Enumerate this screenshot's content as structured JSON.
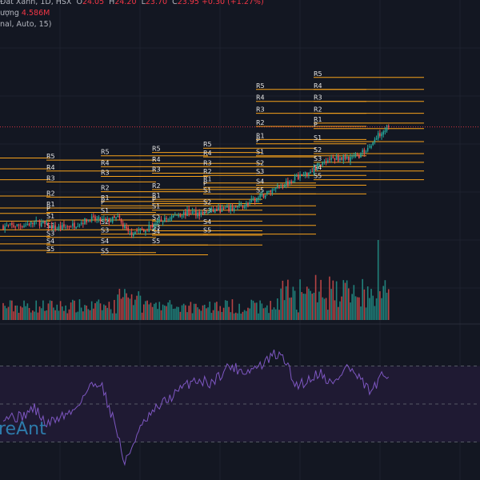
{
  "legend": {
    "symbol": "Đất Xanh, 1D, HSX",
    "o_label": "O",
    "o_value": "24.05",
    "h_label": "H",
    "h_value": "24.20",
    "l_label": "L",
    "l_value": "23.70",
    "c_label": "C",
    "c_value": "23.95",
    "change": "+0.30 (+1.27%)",
    "volume_label": "ượng",
    "volume_value": "4.586M",
    "pivot_settings": "nal, Auto, 15)"
  },
  "watermark": "reAnt",
  "colors": {
    "background": "#131722",
    "up": "#26a69a",
    "down": "#ef5350",
    "pivot": "#f7a21b",
    "pivot_text": "#e8e8e8",
    "rsi_line": "#7e57c2",
    "rsi_band": "#1f1a33",
    "last_price_line": "#f23645"
  },
  "chart_data": [
    {
      "type": "candlestick",
      "symbol": "Đất Xanh, 1D, HSX",
      "last": {
        "open": 24.05,
        "high": 24.2,
        "low": 23.7,
        "close": 23.95,
        "change": 0.3,
        "change_pct": 1.27
      },
      "price_range": [
        10.5,
        28.5
      ],
      "path_anchors": [
        [
          0,
          14.8
        ],
        [
          10,
          14.9
        ],
        [
          20,
          15.2
        ],
        [
          30,
          14.6
        ],
        [
          40,
          14.9
        ],
        [
          50,
          15.5
        ],
        [
          60,
          15.3
        ],
        [
          66,
          15.6
        ],
        [
          72,
          14.2
        ],
        [
          80,
          14.5
        ],
        [
          90,
          15.2
        ],
        [
          100,
          15.9
        ],
        [
          108,
          16.1
        ],
        [
          115,
          16.0
        ],
        [
          122,
          16.3
        ],
        [
          130,
          16.4
        ],
        [
          140,
          16.8
        ],
        [
          148,
          17.5
        ],
        [
          152,
          17.9
        ],
        [
          160,
          18.6
        ],
        [
          170,
          19.4
        ],
        [
          175,
          19.7
        ],
        [
          182,
          20.5
        ],
        [
          188,
          21.0
        ],
        [
          196,
          21.1
        ],
        [
          205,
          21.3
        ],
        [
          212,
          22.3
        ],
        [
          218,
          23.6
        ],
        [
          222,
          23.95
        ]
      ],
      "pivot_sets": [
        {
          "levels": [
            {
              "name": "R5",
              "value": 21.1
            },
            {
              "name": "R4",
              "value": 20.1
            },
            {
              "name": "R3",
              "value": 19.1
            },
            {
              "name": "R2",
              "value": 17.6
            },
            {
              "name": "R1",
              "value": 16.5
            },
            {
              "name": "P",
              "value": 16.0
            },
            {
              "name": "S1",
              "value": 15.3
            },
            {
              "name": "S2",
              "value": 14.5
            },
            {
              "name": "S3",
              "value": 13.9
            },
            {
              "name": "S4",
              "value": 13.2
            },
            {
              "name": "S5",
              "value": 12.6
            }
          ]
        },
        {
          "levels": [
            {
              "name": "R5",
              "value": 20.9
            },
            {
              "name": "R4",
              "value": 19.9
            },
            {
              "name": "R3",
              "value": 18.9
            },
            {
              "name": "R2",
              "value": 17.5
            },
            {
              "name": "R1",
              "value": 16.5
            },
            {
              "name": "P",
              "value": 16.1
            },
            {
              "name": "S1",
              "value": 15.4
            },
            {
              "name": "S2",
              "value": 14.5
            },
            {
              "name": "S3",
              "value": 13.8
            },
            {
              "name": "S4",
              "value": 13.1
            },
            {
              "name": "S5",
              "value": 12.4
            }
          ]
        },
        {
          "levels": [
            {
              "name": "R5",
              "value": 21.3
            },
            {
              "name": "R4",
              "value": 20.3
            },
            {
              "name": "R3",
              "value": 19.4
            },
            {
              "name": "R2",
              "value": 18.0
            },
            {
              "name": "R1",
              "value": 17.1
            },
            {
              "name": "P",
              "value": 16.7
            },
            {
              "name": "S1",
              "value": 15.9
            },
            {
              "name": "S2",
              "value": 14.9
            },
            {
              "name": "S3",
              "value": 14.1
            },
            {
              "name": "S4",
              "value": 13.1
            },
            {
              "name": "S5",
              "value": 12.2
            }
          ]
        },
        {
          "levels": [
            {
              "name": "R5",
              "value": 21.6
            },
            {
              "name": "R4",
              "value": 20.6
            },
            {
              "name": "R3",
              "value": 19.7
            },
            {
              "name": "R2",
              "value": 18.2
            },
            {
              "name": "R1",
              "value": 17.3
            },
            {
              "name": "P",
              "value": 16.9
            },
            {
              "name": "S1",
              "value": 16.3
            },
            {
              "name": "S2",
              "value": 15.3
            },
            {
              "name": "S3",
              "value": 14.4
            },
            {
              "name": "S4",
              "value": 14.0
            },
            {
              "name": "S5",
              "value": 13.1
            }
          ]
        },
        {
          "levels": [
            {
              "name": "R5",
              "value": 22.0
            },
            {
              "name": "R4",
              "value": 21.2
            },
            {
              "name": "R3",
              "value": 20.3
            },
            {
              "name": "R2",
              "value": 19.5
            },
            {
              "name": "R1",
              "value": 18.8
            },
            {
              "name": "P",
              "value": 18.4
            },
            {
              "name": "S1",
              "value": 17.8
            },
            {
              "name": "S2",
              "value": 16.7
            },
            {
              "name": "S3",
              "value": 15.9
            },
            {
              "name": "S4",
              "value": 14.9
            },
            {
              "name": "S5",
              "value": 14.1
            }
          ]
        },
        {
          "levels": [
            {
              "name": "R5",
              "value": 27.4
            },
            {
              "name": "R4",
              "value": 26.3
            },
            {
              "name": "R3",
              "value": 25.2
            },
            {
              "name": "R2",
              "value": 24.0
            },
            {
              "name": "R1",
              "value": 22.8
            },
            {
              "name": "P",
              "value": 22.4
            },
            {
              "name": "S1",
              "value": 21.3
            },
            {
              "name": "S2",
              "value": 20.3
            },
            {
              "name": "S3",
              "value": 19.5
            },
            {
              "name": "S4",
              "value": 18.6
            },
            {
              "name": "S5",
              "value": 17.8
            }
          ]
        },
        {
          "levels": [
            {
              "name": "R5",
              "value": 28.5
            },
            {
              "name": "R4",
              "value": 27.4
            },
            {
              "name": "R3",
              "value": 26.3
            },
            {
              "name": "R2",
              "value": 25.2
            },
            {
              "name": "R1",
              "value": 24.3
            },
            {
              "name": "P",
              "value": 23.8
            },
            {
              "name": "S1",
              "value": 22.6
            },
            {
              "name": "S2",
              "value": 21.5
            },
            {
              "name": "S3",
              "value": 20.7
            },
            {
              "name": "S4",
              "value": 19.9
            },
            {
              "name": "S5",
              "value": 19.1
            }
          ]
        }
      ]
    },
    {
      "type": "bar",
      "name": "volume",
      "latest_value": "4.586M"
    },
    {
      "type": "line",
      "name": "rsi",
      "band": [
        30,
        70
      ],
      "ylim": [
        10,
        90
      ],
      "path_anchors": [
        [
          0,
          44
        ],
        [
          10,
          43
        ],
        [
          18,
          48
        ],
        [
          25,
          39
        ],
        [
          32,
          43
        ],
        [
          40,
          46
        ],
        [
          50,
          59
        ],
        [
          56,
          62
        ],
        [
          60,
          51
        ],
        [
          65,
          38
        ],
        [
          70,
          18
        ],
        [
          76,
          32
        ],
        [
          82,
          41
        ],
        [
          90,
          49
        ],
        [
          100,
          56
        ],
        [
          110,
          63
        ],
        [
          120,
          61
        ],
        [
          130,
          70
        ],
        [
          140,
          67
        ],
        [
          150,
          71
        ],
        [
          156,
          76
        ],
        [
          162,
          74
        ],
        [
          168,
          60
        ],
        [
          175,
          62
        ],
        [
          182,
          67
        ],
        [
          190,
          60
        ],
        [
          198,
          70
        ],
        [
          205,
          63
        ],
        [
          212,
          56
        ],
        [
          218,
          64
        ],
        [
          222,
          65
        ]
      ]
    }
  ]
}
